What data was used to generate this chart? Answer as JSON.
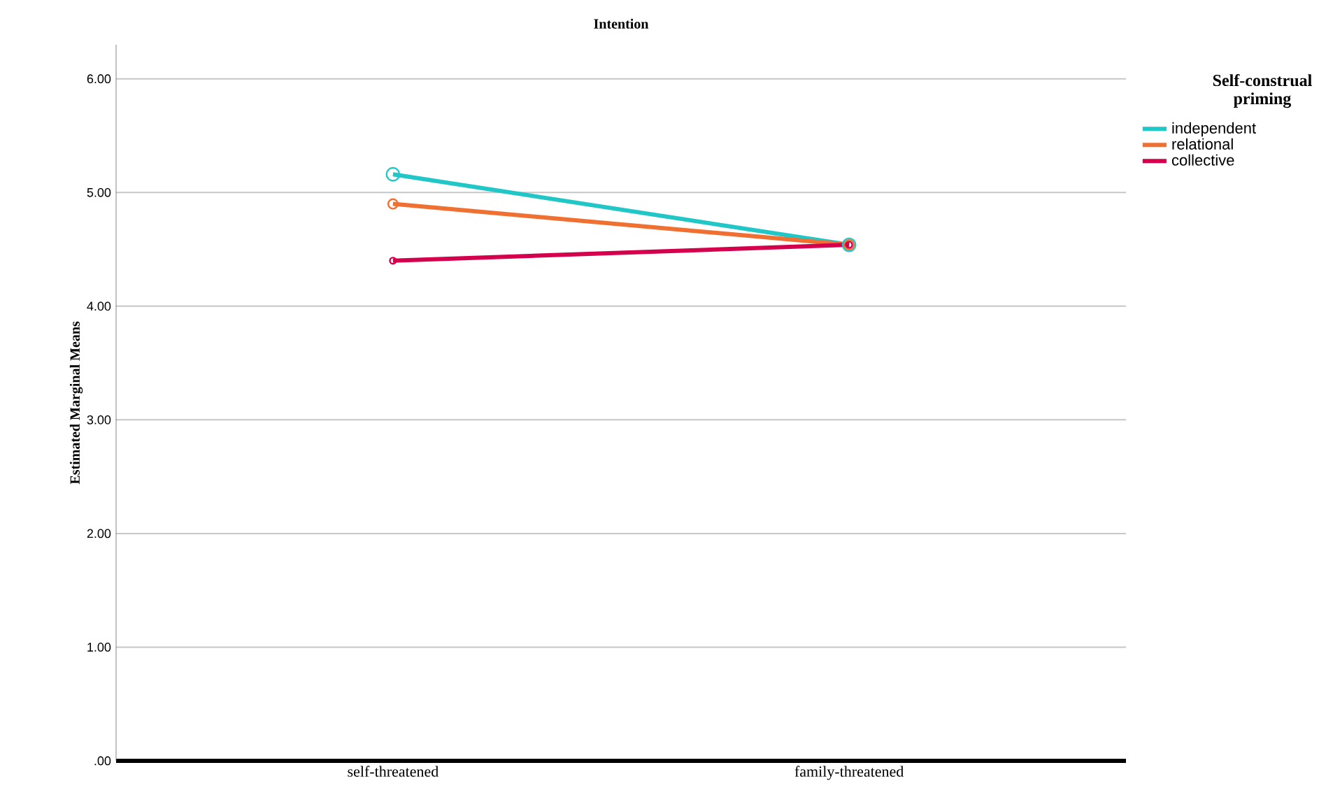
{
  "chart_data": {
    "type": "line",
    "title": "Intention",
    "ylabel": "Estimated Marginal Means",
    "legend_title": "Self-construal priming",
    "categories": [
      "self-threatened",
      "family-threatened"
    ],
    "series": [
      {
        "name": "independent",
        "color": "#21c6c6",
        "values": [
          5.16,
          4.54
        ]
      },
      {
        "name": "relational",
        "color": "#f07032",
        "values": [
          4.9,
          4.54
        ]
      },
      {
        "name": "collective",
        "color": "#d4004c",
        "values": [
          4.4,
          4.54
        ]
      }
    ],
    "ylim": [
      0,
      6.3
    ],
    "yticks": [
      {
        "value": 0,
        "label": ".00"
      },
      {
        "value": 1,
        "label": "1.00"
      },
      {
        "value": 2,
        "label": "2.00"
      },
      {
        "value": 3,
        "label": "3.00"
      },
      {
        "value": 4,
        "label": "4.00"
      },
      {
        "value": 5,
        "label": "5.00"
      },
      {
        "value": 6,
        "label": "6.00"
      }
    ],
    "grid": "y",
    "legend": "top right",
    "marker": "circle",
    "line_style": "solid"
  }
}
